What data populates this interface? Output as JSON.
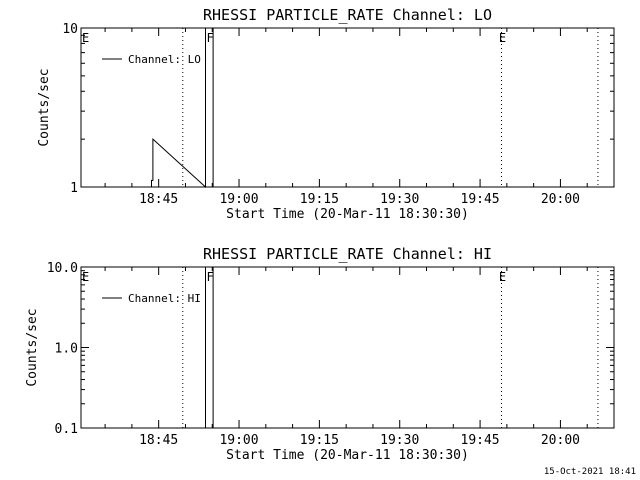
{
  "footer": "15-Oct-2021 18:41",
  "colors": {
    "foreground": "#000000",
    "background": "#ffffff"
  },
  "chart_data": [
    {
      "type": "line",
      "title": "RHESSI PARTICLE_RATE Channel: LO",
      "xlabel": "Start Time (20-Mar-11 18:30:30)",
      "ylabel": "Counts/sec",
      "yscale": "log",
      "ylim": [
        1,
        10
      ],
      "xlim": [
        "18:30:30",
        "20:10:00"
      ],
      "xtick_values": [
        "18:45",
        "19:00",
        "19:15",
        "19:30",
        "19:45",
        "20:00"
      ],
      "ytick_values": [
        1,
        10
      ],
      "ytick_labels": [
        "1",
        "10"
      ],
      "grid": false,
      "legend_position": "top-left",
      "series": [
        {
          "name": "Channel: LO",
          "x": [
            "18:43:40",
            "18:43:40",
            "18:43:55",
            "18:43:55",
            "18:53:45",
            "18:53:45",
            "18:55:10",
            "18:55:10"
          ],
          "y": [
            1,
            1.1,
            1.1,
            2.0,
            1,
            10,
            10,
            1
          ]
        }
      ],
      "flags": [
        {
          "label": "E",
          "time": "18:30:30"
        },
        {
          "label": "F",
          "time": "18:53:45"
        },
        {
          "label": "E",
          "time": "19:48:20"
        }
      ],
      "dotted_markers": [
        "18:49:30",
        "19:49:00",
        "20:07:00"
      ]
    },
    {
      "type": "line",
      "title": "RHESSI PARTICLE_RATE Channel: HI",
      "xlabel": "Start Time (20-Mar-11 18:30:30)",
      "ylabel": "Counts/sec",
      "yscale": "log",
      "ylim": [
        0.1,
        10
      ],
      "xlim": [
        "18:30:30",
        "20:10:00"
      ],
      "xtick_values": [
        "18:45",
        "19:00",
        "19:15",
        "19:30",
        "19:45",
        "20:00"
      ],
      "ytick_values": [
        0.1,
        1,
        10
      ],
      "ytick_labels": [
        "0.1",
        "1.0",
        "10.0"
      ],
      "grid": false,
      "legend_position": "top-left",
      "series": [
        {
          "name": "Channel: HI",
          "x": [
            "18:53:45",
            "18:53:45",
            "18:55:10",
            "18:55:10"
          ],
          "y": [
            0.1,
            10,
            10,
            0.1
          ]
        }
      ],
      "flags": [
        {
          "label": "E",
          "time": "18:30:30"
        },
        {
          "label": "F",
          "time": "18:53:45"
        },
        {
          "label": "E",
          "time": "19:48:20"
        }
      ],
      "dotted_markers": [
        "18:49:30",
        "19:49:00",
        "20:07:00"
      ]
    }
  ]
}
